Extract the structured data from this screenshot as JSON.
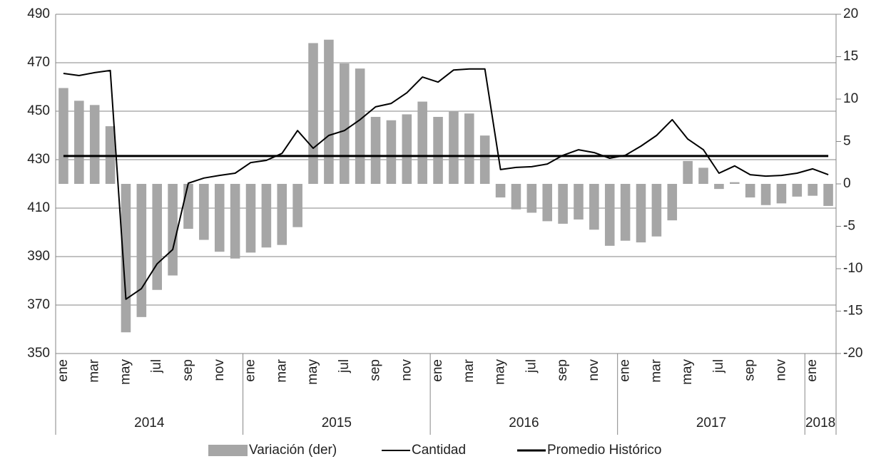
{
  "chart_data": {
    "type": "combo",
    "categories": [
      "ene",
      null,
      "mar",
      null,
      "may",
      null,
      "jul",
      null,
      "sep",
      null,
      "nov",
      null,
      "ene",
      null,
      "mar",
      null,
      "may",
      null,
      "jul",
      null,
      "sep",
      null,
      "nov",
      null,
      "ene",
      null,
      "mar",
      null,
      "may",
      null,
      "jul",
      null,
      "sep",
      null,
      "nov",
      null,
      "ene",
      null,
      "mar",
      null,
      "may",
      null,
      "jul",
      null,
      "sep",
      null,
      "nov",
      null,
      "ene",
      null
    ],
    "x_groups": [
      "2014",
      "2015",
      "2016",
      "2017",
      "2018"
    ],
    "series": [
      {
        "name": "Variación (der)",
        "type": "bar",
        "axis": "y2",
        "color": "#a6a6a6",
        "values": [
          11.3,
          9.8,
          9.3,
          6.8,
          -17.5,
          -15.7,
          -12.5,
          -10.8,
          -5.3,
          -6.6,
          -8.0,
          -8.8,
          -8.1,
          -7.5,
          -7.2,
          -5.1,
          16.6,
          17.0,
          14.2,
          13.6,
          7.9,
          7.5,
          8.2,
          9.7,
          7.9,
          8.6,
          8.3,
          5.7,
          -1.6,
          -3.0,
          -3.4,
          -4.4,
          -4.7,
          -4.2,
          -5.4,
          -7.3,
          -6.7,
          -6.9,
          -6.2,
          -4.3,
          2.7,
          1.9,
          -0.6,
          0.2,
          -1.6,
          -2.5,
          -2.3,
          -1.5,
          -1.4,
          -2.6
        ]
      },
      {
        "name": "Cantidad",
        "type": "line",
        "color": "#000000",
        "width": 2,
        "values": [
          465.6,
          464.7,
          465.9,
          466.8,
          372.4,
          376.8,
          387.0,
          392.9,
          420.3,
          422.4,
          423.5,
          424.4,
          428.8,
          429.7,
          432.6,
          442.0,
          434.7,
          440.0,
          442.0,
          446.5,
          451.8,
          453.2,
          457.6,
          464.1,
          462.0,
          467.0,
          467.4,
          467.4,
          425.9,
          426.8,
          427.1,
          428.2,
          431.8,
          434.1,
          432.9,
          430.6,
          431.8,
          435.6,
          440.0,
          446.5,
          438.5,
          434.1,
          424.4,
          427.4,
          423.8,
          423.2,
          423.5,
          424.4,
          426.2,
          423.8
        ]
      },
      {
        "name": "Promedio Histórico",
        "type": "line",
        "color": "#000000",
        "width": 3,
        "values": [
          431.5,
          431.5,
          431.5,
          431.5,
          431.5,
          431.5,
          431.5,
          431.5,
          431.5,
          431.5,
          431.5,
          431.5,
          431.5,
          431.5,
          431.5,
          431.5,
          431.5,
          431.5,
          431.5,
          431.5,
          431.5,
          431.5,
          431.5,
          431.5,
          431.5,
          431.5,
          431.5,
          431.5,
          431.5,
          431.5,
          431.5,
          431.5,
          431.5,
          431.5,
          431.5,
          431.5,
          431.5,
          431.5,
          431.5,
          431.5,
          431.5,
          431.5,
          431.5,
          431.5,
          431.5,
          431.5,
          431.5,
          431.5,
          431.5,
          431.5
        ]
      }
    ],
    "ylim": [
      350,
      490
    ],
    "yticks": [
      350,
      370,
      390,
      410,
      430,
      450,
      470,
      490
    ],
    "y2lim": [
      -20,
      20
    ],
    "y2ticks": [
      -20,
      -15,
      -10,
      -5,
      0,
      5,
      10,
      15,
      20
    ],
    "grid": true,
    "legend": "bottom"
  }
}
